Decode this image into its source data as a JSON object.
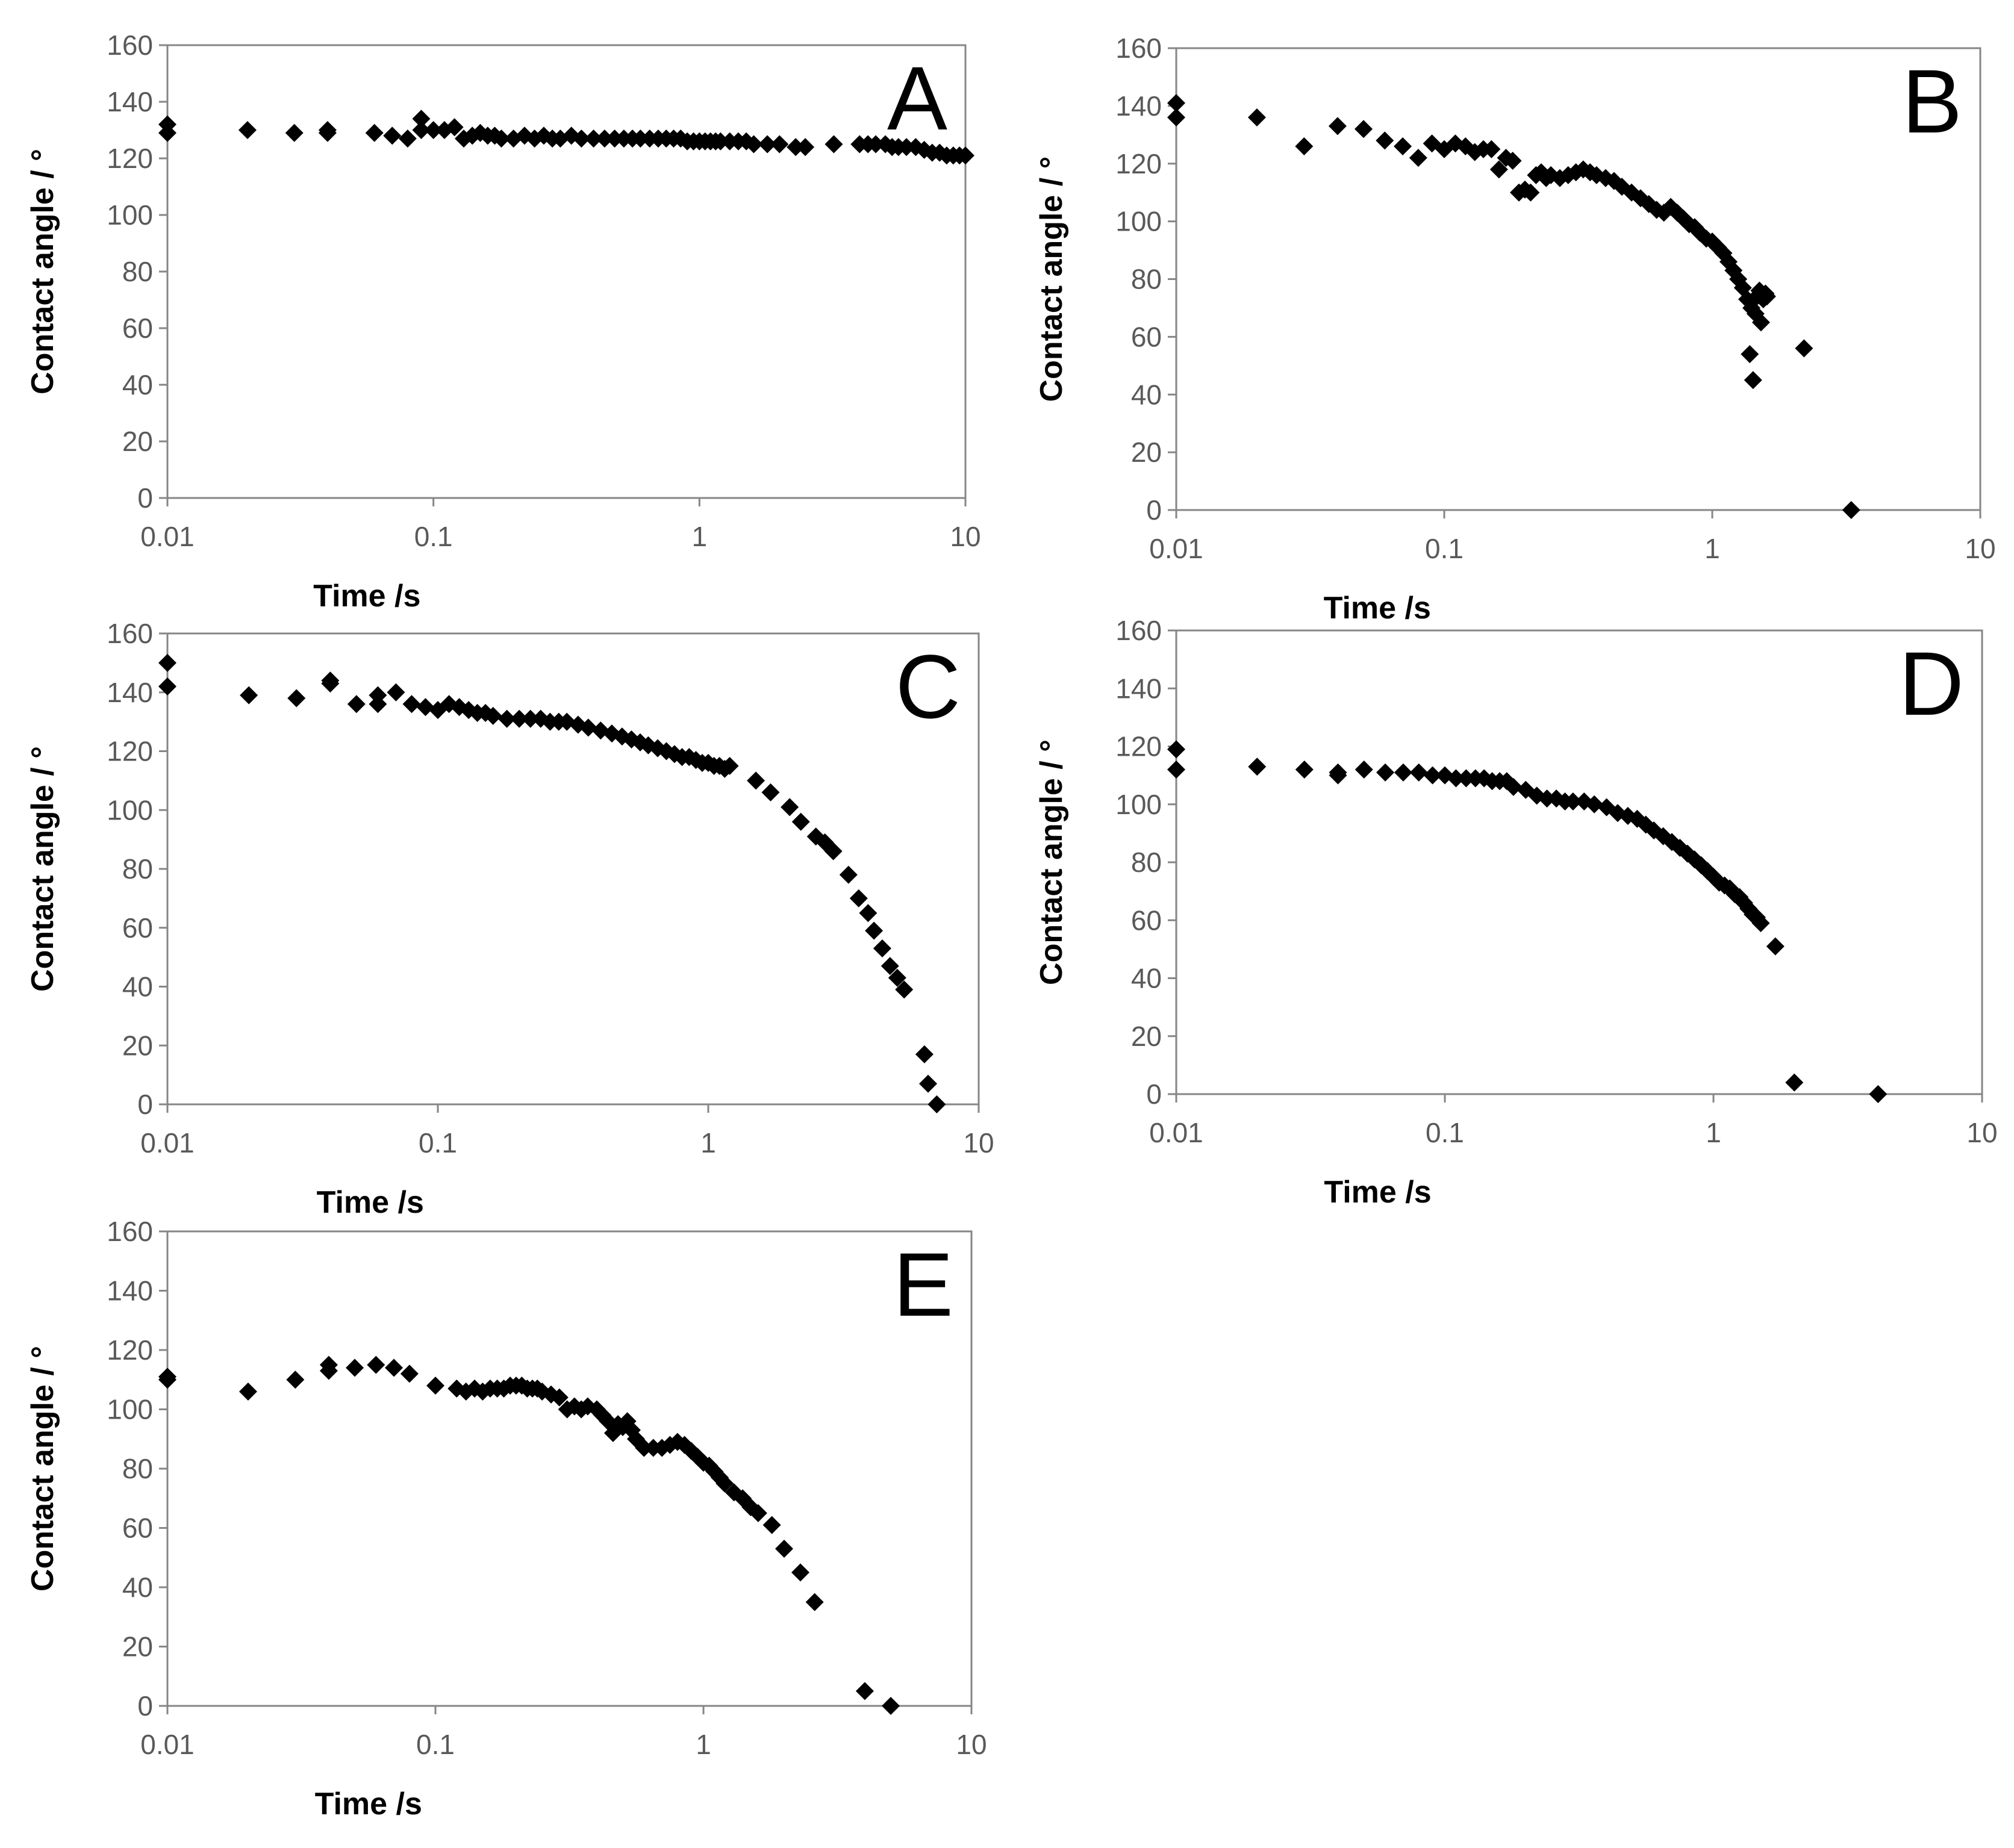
{
  "chart_data": [
    {
      "type": "scatter",
      "panel": "A",
      "xlabel": "Time /s",
      "ylabel": "Contact angle / °",
      "xscale": "log",
      "xlim": [
        0.01,
        10
      ],
      "ylim": [
        0,
        160
      ],
      "xticks": [
        "0.01",
        "0.1",
        "1",
        "10"
      ],
      "yticks": [
        "0",
        "20",
        "40",
        "60",
        "80",
        "100",
        "120",
        "140",
        "160"
      ],
      "grid": false,
      "legend": "none",
      "marker": "diamond",
      "series": [
        {
          "x": [
            0.01,
            0.01,
            0.02,
            0.03,
            0.04,
            0.04,
            0.06,
            0.07,
            0.08,
            0.09,
            0.09,
            0.1,
            0.11,
            0.12,
            0.13,
            0.14,
            0.15,
            0.16,
            0.17,
            0.18,
            0.2,
            0.22,
            0.24,
            0.26,
            0.28,
            0.3,
            0.33,
            0.36,
            0.4,
            0.44,
            0.48,
            0.52,
            0.56,
            0.6,
            0.65,
            0.7,
            0.75,
            0.8,
            0.85,
            0.9,
            0.95,
            1.0,
            1.05,
            1.1,
            1.15,
            1.2,
            1.3,
            1.4,
            1.5,
            1.6,
            1.8,
            2.0,
            2.3,
            2.5,
            3.2,
            4.0,
            4.3,
            4.6,
            5.0,
            5.3,
            5.6,
            6.0,
            6.5,
            7.0,
            7.5,
            8.0,
            8.5,
            9.0,
            9.5,
            10.0
          ],
          "y": [
            132,
            129,
            130,
            129,
            130,
            129,
            129,
            128,
            127,
            134,
            130,
            130,
            130,
            131,
            127,
            128,
            129,
            128,
            128,
            127,
            127,
            128,
            127,
            128,
            127,
            127,
            128,
            127,
            127,
            127,
            127,
            127,
            127,
            127,
            127,
            127,
            127,
            127,
            127,
            126,
            126,
            126,
            126,
            126,
            126,
            126,
            126,
            126,
            126,
            125,
            125,
            125,
            124,
            124,
            125,
            125,
            125,
            125,
            125,
            124,
            124,
            124,
            124,
            123,
            122,
            122,
            121,
            121,
            121,
            121
          ]
        }
      ]
    },
    {
      "type": "scatter",
      "panel": "B",
      "xlabel": "Time /s",
      "ylabel": "Contact angle / °",
      "xscale": "log",
      "xlim": [
        0.01,
        10
      ],
      "ylim": [
        0,
        160
      ],
      "xticks": [
        "0.01",
        "0.1",
        "1",
        "10"
      ],
      "yticks": [
        "0",
        "20",
        "40",
        "60",
        "80",
        "100",
        "120",
        "140",
        "160"
      ],
      "grid": false,
      "legend": "none",
      "marker": "diamond",
      "series": [
        {
          "x": [
            0.01,
            0.01,
            0.02,
            0.03,
            0.04,
            0.05,
            0.06,
            0.07,
            0.08,
            0.09,
            0.1,
            0.11,
            0.12,
            0.13,
            0.14,
            0.15,
            0.16,
            0.17,
            0.18,
            0.19,
            0.2,
            0.21,
            0.22,
            0.23,
            0.24,
            0.25,
            0.27,
            0.29,
            0.31,
            0.33,
            0.35,
            0.37,
            0.4,
            0.43,
            0.46,
            0.5,
            0.54,
            0.58,
            0.62,
            0.66,
            0.7,
            0.74,
            0.78,
            0.82,
            0.86,
            0.9,
            0.95,
            1.0,
            1.05,
            1.1,
            1.15,
            1.2,
            1.25,
            1.3,
            1.35,
            1.38,
            1.4,
            1.42,
            1.45,
            1.47,
            1.5,
            1.52,
            1.55,
            1.58,
            1.6,
            2.2,
            3.3
          ],
          "y": [
            141,
            136,
            136,
            126,
            133,
            132,
            128,
            126,
            122,
            127,
            125,
            127,
            126,
            124,
            125,
            125,
            118,
            122,
            121,
            110,
            111,
            110,
            116,
            117,
            115,
            116,
            115,
            116,
            117,
            118,
            117,
            116,
            115,
            114,
            112,
            110,
            108,
            106,
            104,
            103,
            105,
            103,
            101,
            99,
            98,
            96,
            94,
            93,
            91,
            89,
            86,
            83,
            80,
            77,
            73,
            54,
            70,
            45,
            68,
            74,
            76,
            65,
            73,
            75,
            74,
            56,
            0
          ]
        }
      ]
    },
    {
      "type": "scatter",
      "panel": "C",
      "xlabel": "Time /s",
      "ylabel": "Contact angle / °",
      "xscale": "log",
      "xlim": [
        0.01,
        10
      ],
      "ylim": [
        0,
        160
      ],
      "xticks": [
        "0.01",
        "0.1",
        "1",
        "10"
      ],
      "yticks": [
        "0",
        "20",
        "40",
        "60",
        "80",
        "100",
        "120",
        "140",
        "160"
      ],
      "grid": false,
      "legend": "none",
      "marker": "diamond",
      "series": [
        {
          "x": [
            0.01,
            0.01,
            0.02,
            0.03,
            0.04,
            0.04,
            0.05,
            0.06,
            0.06,
            0.07,
            0.08,
            0.09,
            0.1,
            0.11,
            0.12,
            0.13,
            0.14,
            0.15,
            0.16,
            0.18,
            0.2,
            0.22,
            0.24,
            0.26,
            0.28,
            0.3,
            0.33,
            0.36,
            0.4,
            0.44,
            0.48,
            0.52,
            0.56,
            0.6,
            0.65,
            0.7,
            0.75,
            0.8,
            0.85,
            0.9,
            0.95,
            1.0,
            1.05,
            1.1,
            1.15,
            1.2,
            1.5,
            1.7,
            2.0,
            2.2,
            2.5,
            2.7,
            2.9,
            3.3,
            3.6,
            3.9,
            4.1,
            4.4,
            4.7,
            5.0,
            5.3,
            6.3,
            6.5,
            7.0
          ],
          "y": [
            150,
            142,
            139,
            138,
            144,
            143,
            136,
            136,
            139,
            140,
            136,
            135,
            134,
            136,
            135,
            134,
            133,
            133,
            132,
            131,
            131,
            131,
            131,
            130,
            130,
            130,
            129,
            128,
            127,
            126,
            125,
            124,
            123,
            122,
            121,
            120,
            119,
            118,
            118,
            117,
            116,
            116,
            115,
            115,
            114,
            115,
            110,
            106,
            101,
            96,
            91,
            89,
            86,
            78,
            70,
            65,
            59,
            53,
            47,
            43,
            39,
            17,
            7,
            0
          ]
        }
      ]
    },
    {
      "type": "scatter",
      "panel": "D",
      "xlabel": "Time /s",
      "ylabel": "Contact angle / °",
      "xscale": "log",
      "xlim": [
        0.01,
        10
      ],
      "ylim": [
        0,
        160
      ],
      "xticks": [
        "0.01",
        "0.1",
        "1",
        "10"
      ],
      "yticks": [
        "0",
        "20",
        "40",
        "60",
        "80",
        "100",
        "120",
        "140",
        "160"
      ],
      "grid": false,
      "legend": "none",
      "marker": "diamond",
      "series": [
        {
          "x": [
            0.01,
            0.01,
            0.02,
            0.03,
            0.04,
            0.04,
            0.05,
            0.06,
            0.07,
            0.08,
            0.09,
            0.1,
            0.11,
            0.12,
            0.13,
            0.14,
            0.15,
            0.16,
            0.17,
            0.18,
            0.2,
            0.22,
            0.24,
            0.26,
            0.28,
            0.3,
            0.33,
            0.36,
            0.4,
            0.44,
            0.48,
            0.52,
            0.56,
            0.6,
            0.65,
            0.7,
            0.75,
            0.8,
            0.85,
            0.9,
            0.95,
            1.0,
            1.05,
            1.1,
            1.15,
            1.2,
            1.25,
            1.3,
            1.35,
            1.4,
            1.45,
            1.5,
            1.7,
            2.0,
            4.1
          ],
          "y": [
            119,
            112,
            113,
            112,
            111,
            110,
            112,
            111,
            111,
            111,
            110,
            110,
            109,
            109,
            109,
            109,
            108,
            108,
            108,
            106,
            105,
            103,
            102,
            102,
            101,
            101,
            101,
            100,
            99,
            97,
            96,
            95,
            93,
            91,
            89,
            87,
            85,
            83,
            81,
            79,
            77,
            75,
            73,
            72,
            71,
            69,
            68,
            66,
            64,
            62,
            61,
            59,
            51,
            4,
            0
          ]
        }
      ]
    },
    {
      "type": "scatter",
      "panel": "E",
      "xlabel": "Time /s",
      "ylabel": "Contact angle / °",
      "xscale": "log",
      "xlim": [
        0.01,
        10
      ],
      "ylim": [
        0,
        160
      ],
      "xticks": [
        "0.01",
        "0.1",
        "1",
        "10"
      ],
      "yticks": [
        "0",
        "20",
        "40",
        "60",
        "80",
        "100",
        "120",
        "140",
        "160"
      ],
      "grid": false,
      "legend": "none",
      "marker": "diamond",
      "series": [
        {
          "x": [
            0.01,
            0.01,
            0.02,
            0.03,
            0.04,
            0.04,
            0.05,
            0.06,
            0.07,
            0.08,
            0.1,
            0.12,
            0.13,
            0.14,
            0.15,
            0.16,
            0.17,
            0.18,
            0.19,
            0.2,
            0.21,
            0.22,
            0.23,
            0.24,
            0.25,
            0.27,
            0.29,
            0.31,
            0.33,
            0.35,
            0.37,
            0.4,
            0.42,
            0.44,
            0.46,
            0.48,
            0.5,
            0.52,
            0.54,
            0.56,
            0.6,
            0.65,
            0.7,
            0.75,
            0.8,
            0.85,
            0.9,
            0.95,
            1.0,
            1.05,
            1.1,
            1.15,
            1.2,
            1.3,
            1.4,
            1.5,
            1.6,
            1.8,
            2.0,
            2.3,
            2.6,
            4.0,
            5.0
          ],
          "y": [
            111,
            110,
            106,
            110,
            115,
            113,
            114,
            115,
            114,
            112,
            108,
            107,
            106,
            107,
            106,
            107,
            107,
            107,
            108,
            108,
            108,
            107,
            107,
            107,
            106,
            105,
            104,
            100,
            101,
            100,
            101,
            100,
            98,
            96,
            92,
            95,
            94,
            96,
            93,
            90,
            87,
            87,
            87,
            88,
            89,
            88,
            86,
            84,
            82,
            81,
            79,
            77,
            75,
            72,
            70,
            67,
            65,
            61,
            53,
            45,
            35,
            5,
            0
          ]
        }
      ]
    }
  ]
}
